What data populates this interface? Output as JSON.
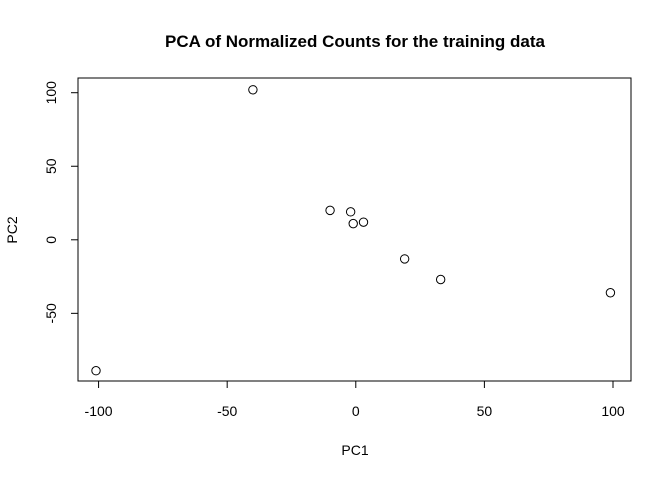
{
  "chart_data": {
    "type": "scatter",
    "title": "PCA of Normalized Counts for the training data",
    "xlabel": "PC1",
    "ylabel": "PC2",
    "xlim": [
      -108,
      107
    ],
    "ylim": [
      -96,
      110
    ],
    "x_ticks": [
      -100,
      -50,
      0,
      50,
      100
    ],
    "x_tick_labels": [
      "-100",
      "-50",
      "0",
      "50",
      "100"
    ],
    "y_ticks": [
      -50,
      0,
      50,
      100
    ],
    "y_tick_labels": [
      "-50",
      "0",
      "50",
      "100"
    ],
    "grid": false,
    "legend": false,
    "marker": "open-circle",
    "points": [
      {
        "x": -40,
        "y": 102
      },
      {
        "x": -10,
        "y": 20
      },
      {
        "x": -2,
        "y": 19
      },
      {
        "x": -1,
        "y": 11
      },
      {
        "x": 3,
        "y": 12
      },
      {
        "x": 19,
        "y": -13
      },
      {
        "x": 33,
        "y": -27
      },
      {
        "x": 99,
        "y": -36
      },
      {
        "x": -101,
        "y": -89
      }
    ]
  }
}
